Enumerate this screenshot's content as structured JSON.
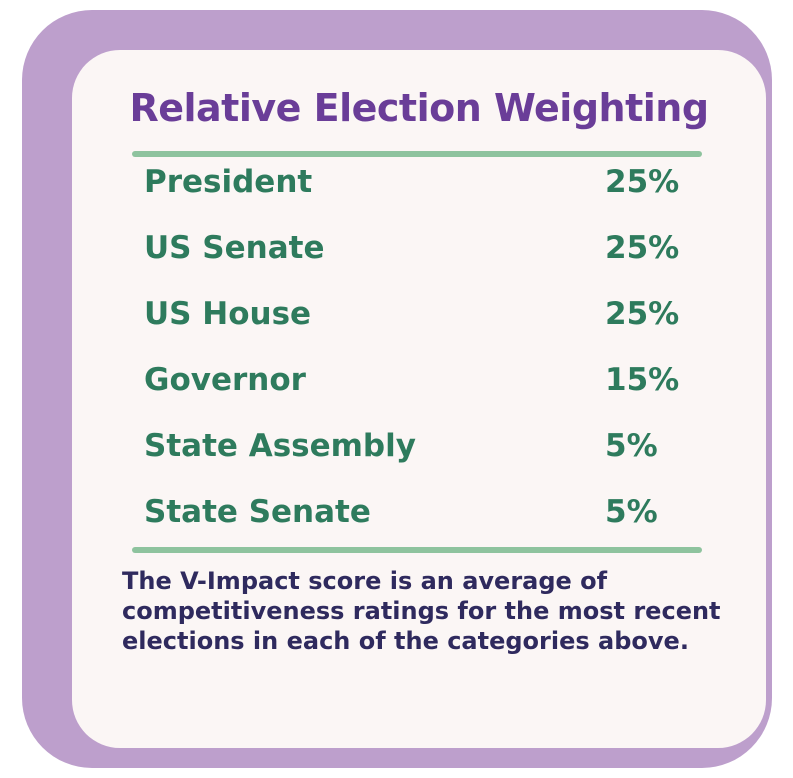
{
  "title": "Relative Election Weighting",
  "rows": [
    {
      "label": "President",
      "value": "25%"
    },
    {
      "label": "US Senate",
      "value": "25%"
    },
    {
      "label": "US House",
      "value": "25%"
    },
    {
      "label": "Governor",
      "value": "15%"
    },
    {
      "label": "State Assembly",
      "value": "5%"
    },
    {
      "label": "State Senate",
      "value": "5%"
    }
  ],
  "note": "The V-Impact score is an average of competitiveness ratings for the most recent elections in each of the categories above.",
  "colors": {
    "frame": "#bd9fcc",
    "card": "#fbf6f5",
    "title": "#6a3d98",
    "rows": "#2e7b5d",
    "rule": "#8ec39e",
    "note": "#2f2a5e"
  }
}
